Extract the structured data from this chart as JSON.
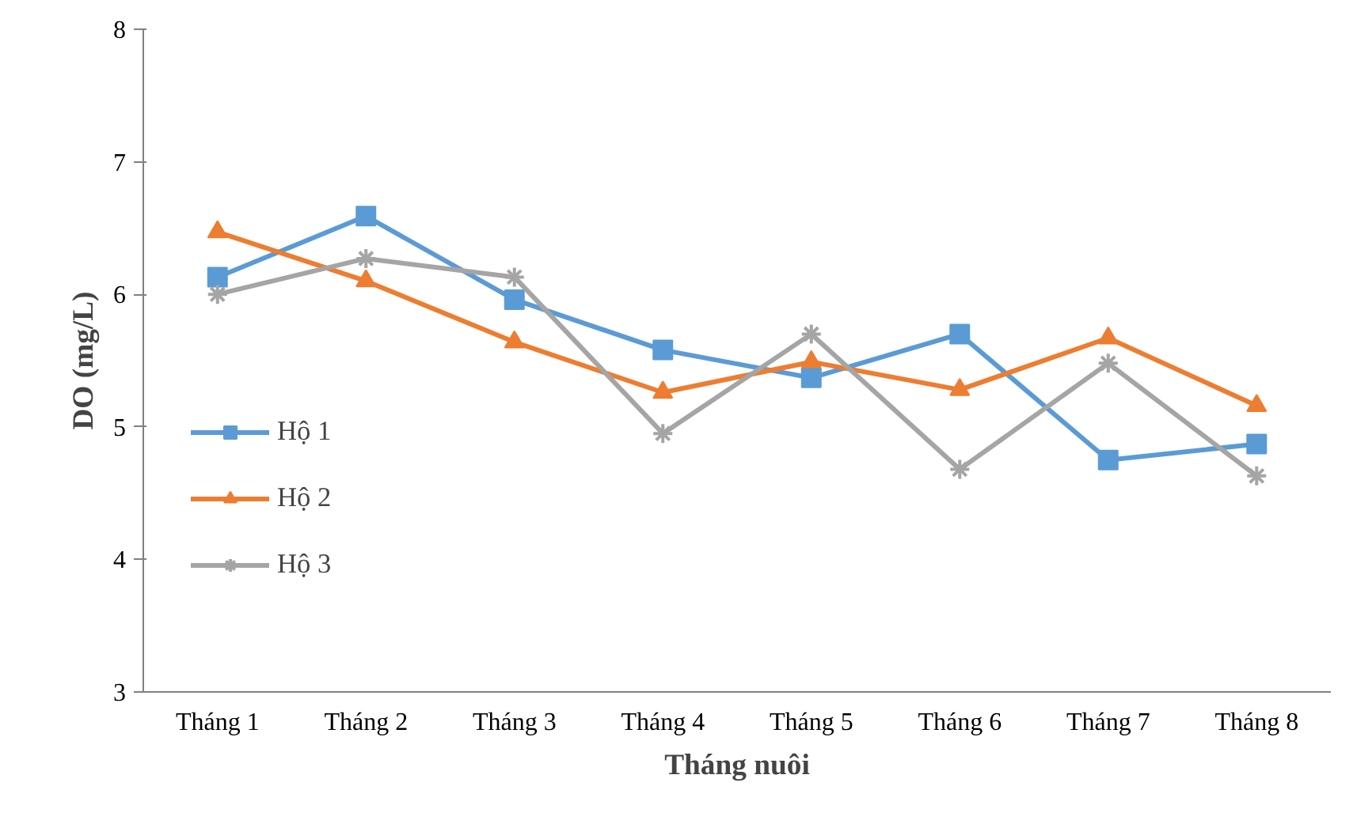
{
  "chart_data": {
    "type": "line",
    "xlabel": "Tháng nuôi",
    "ylabel": "DO (mg/L)",
    "categories": [
      "Tháng 1",
      "Tháng 2",
      "Tháng 3",
      "Tháng 4",
      "Tháng 5",
      "Tháng 6",
      "Tháng 7",
      "Tháng 8"
    ],
    "series": [
      {
        "name": "Hộ 1",
        "color": "#5b9bd5",
        "marker": "square",
        "values": [
          6.13,
          6.59,
          5.96,
          5.58,
          5.37,
          5.7,
          4.75,
          4.87
        ]
      },
      {
        "name": "Hộ 2",
        "color": "#ed7d31",
        "marker": "triangle",
        "values": [
          6.47,
          6.1,
          5.64,
          5.26,
          5.49,
          5.28,
          5.67,
          5.16
        ]
      },
      {
        "name": "Hộ 3",
        "color": "#a5a5a5",
        "marker": "cross",
        "values": [
          6.0,
          6.27,
          6.13,
          4.95,
          5.7,
          4.68,
          5.48,
          4.63
        ]
      }
    ],
    "ylim": [
      3,
      8
    ],
    "yticks": [
      3,
      4,
      5,
      6,
      7,
      8
    ],
    "grid": false,
    "legend": "left"
  }
}
